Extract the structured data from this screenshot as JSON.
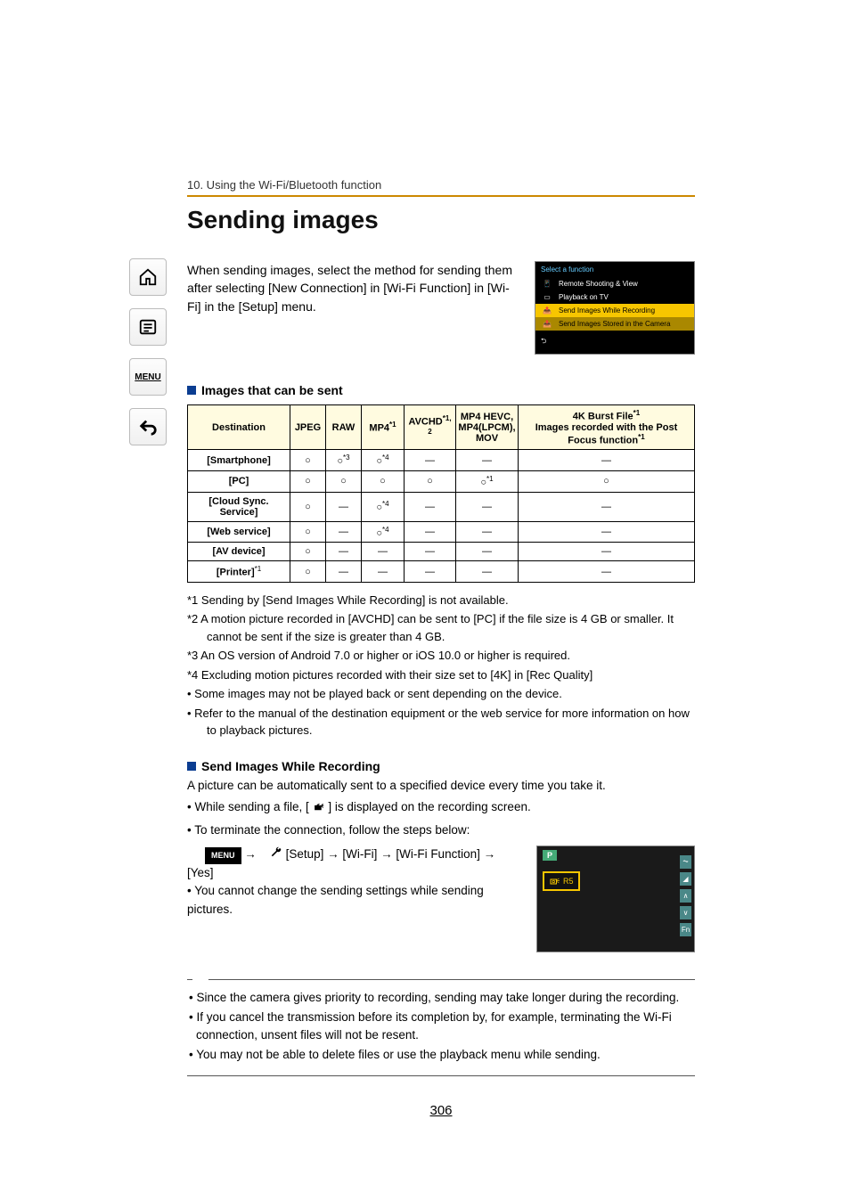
{
  "breadcrumb": "10. Using the Wi-Fi/Bluetooth function",
  "title": "Sending images",
  "intro": "When sending images, select the method for sending them after selecting [New Connection] in [Wi-Fi Function] in [Wi-Fi] in the [Setup] menu.",
  "cam_menu": {
    "header": "Select a function",
    "items": [
      "Remote Shooting & View",
      "Playback on TV",
      "Send Images While Recording",
      "Send Images Stored in the Camera"
    ]
  },
  "h2": "Images that can be sent",
  "table": {
    "headers": {
      "dest": "Destination",
      "jpeg": "JPEG",
      "raw": "RAW",
      "mp4": "MP4",
      "mp4_sup": "*1",
      "avchd": "AVCHD",
      "avchd_sup": "*1, 2",
      "hevc": "MP4 HEVC, MP4(LPCM), MOV",
      "burst": "4K Burst File",
      "burst_sup": "*1",
      "burst2": "Images recorded with the Post Focus function",
      "burst2_sup": "*1"
    },
    "rows": [
      {
        "dest": "[Smartphone]",
        "jpeg": "○",
        "raw": "○",
        "raw_sup": "*3",
        "mp4": "○",
        "mp4_sup": "*4",
        "avchd": "—",
        "hevc": "—",
        "burst": "—"
      },
      {
        "dest": "[PC]",
        "jpeg": "○",
        "raw": "○",
        "mp4": "○",
        "avchd": "○",
        "hevc": "○",
        "hevc_sup": "*1",
        "burst": "○"
      },
      {
        "dest": "[Cloud Sync. Service]",
        "jpeg": "○",
        "raw": "—",
        "mp4": "○",
        "mp4_sup": "*4",
        "avchd": "—",
        "hevc": "—",
        "burst": "—"
      },
      {
        "dest": "[Web service]",
        "jpeg": "○",
        "raw": "—",
        "mp4": "○",
        "mp4_sup": "*4",
        "avchd": "—",
        "hevc": "—",
        "burst": "—"
      },
      {
        "dest": "[AV device]",
        "jpeg": "○",
        "raw": "—",
        "mp4": "—",
        "avchd": "—",
        "hevc": "—",
        "burst": "—"
      },
      {
        "dest": "[Printer]",
        "dest_sup": "*1",
        "jpeg": "○",
        "raw": "—",
        "mp4": "—",
        "avchd": "—",
        "hevc": "—",
        "burst": "—"
      }
    ]
  },
  "notes": [
    "*1 Sending by [Send Images While Recording] is not available.",
    "*2 A motion picture recorded in [AVCHD] can be sent to [PC] if the file size is 4 GB or smaller. It cannot be sent if the size is greater than 4 GB.",
    "*3 An OS version of Android 7.0 or higher or iOS 10.0 or higher is required.",
    "*4 Excluding motion pictures recorded with their size set to [4K] in [Rec Quality]",
    "• Some images may not be played back or sent depending on the device.",
    "• Refer to the manual of the destination equipment or the web service for more information on how to playback pictures."
  ],
  "h3": "Send Images While Recording",
  "body2": {
    "line1": "A picture can be automatically sent to a specified device every time you take it.",
    "line2a": "• While sending a file, [",
    "line2b": "] is displayed on the recording screen.",
    "line3": "• To terminate the connection, follow the steps below:",
    "menu_path": " [Setup] → [Wi-Fi] → [Wi-Fi Function] → [Yes]",
    "line4": "• You cannot change the sending settings while sending pictures."
  },
  "rec": {
    "p": "P",
    "r5": "R5",
    "fn": "Fn"
  },
  "tips": [
    "• Since the camera gives priority to recording, sending may take longer during the recording.",
    "• If you cancel the transmission before its completion by, for example, terminating the Wi-Fi connection, unsent files will not be resent.",
    "• You may not be able to delete files or use the playback menu while sending."
  ],
  "pagenum": "306",
  "menu_label": "MENU",
  "arrow": "→",
  "wrench": "🔧"
}
